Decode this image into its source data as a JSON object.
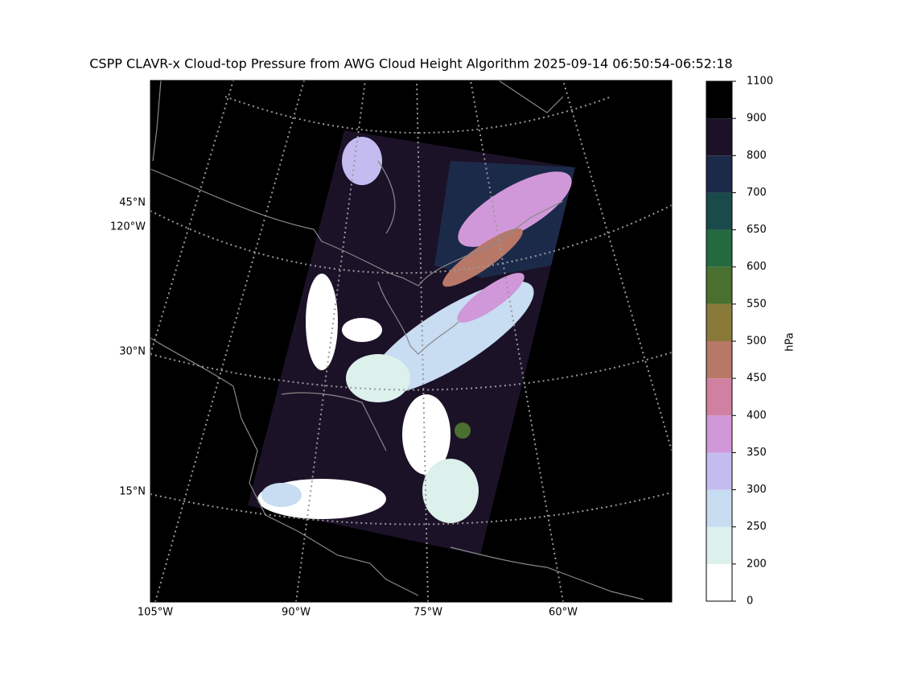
{
  "title": "CSPP CLAVR-x Cloud-top Pressure from AWG Cloud Height Algorithm 2025-09-14 06:50:54-06:52:18",
  "map": {
    "lat_labels": [
      "45°N",
      "120°W",
      "30°N",
      "15°N"
    ],
    "lon_labels": [
      "105°W",
      "90°W",
      "75°W",
      "60°W"
    ]
  },
  "colorbar": {
    "label": "hPa",
    "bounds": [
      0,
      200,
      250,
      300,
      350,
      400,
      450,
      500,
      550,
      600,
      650,
      700,
      800,
      900,
      1100
    ],
    "colors": [
      "#ffffff",
      "#dcf0ec",
      "#c8dcf2",
      "#c4bcf0",
      "#d098d8",
      "#d080a0",
      "#b87868",
      "#8a7a3a",
      "#4a7030",
      "#236a3e",
      "#1a4a4a",
      "#1c2a4a",
      "#1c1228",
      "#000000"
    ]
  }
}
